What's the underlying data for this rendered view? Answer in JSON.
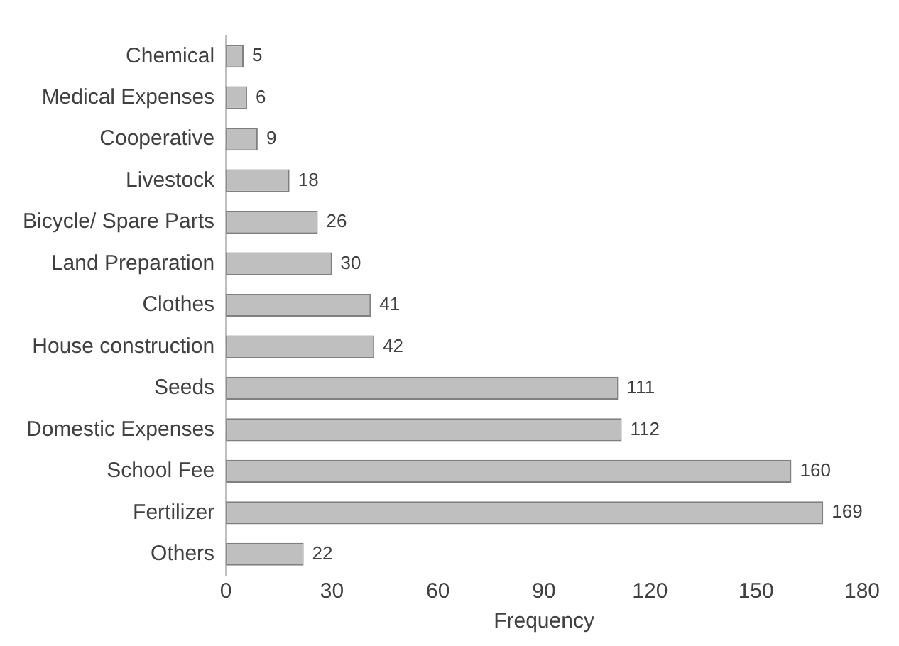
{
  "chart_data": {
    "type": "bar",
    "orientation": "horizontal",
    "xlabel": "Frequency",
    "categories": [
      "Chemical",
      "Medical Expenses",
      "Cooperative",
      "Livestock",
      "Bicycle/ Spare Parts",
      "Land Preparation",
      "Clothes",
      "House construction",
      "Seeds",
      "Domestic Expenses",
      "School Fee",
      "Fertilizer",
      "Others"
    ],
    "values": [
      5,
      6,
      9,
      18,
      26,
      30,
      41,
      42,
      111,
      112,
      160,
      169,
      22
    ],
    "color": "#bfbfbf",
    "xlim": [
      0,
      180
    ],
    "xticks": [
      0,
      30,
      60,
      90,
      120,
      150,
      180
    ],
    "grid": false,
    "legend": false,
    "data_labels": true
  }
}
